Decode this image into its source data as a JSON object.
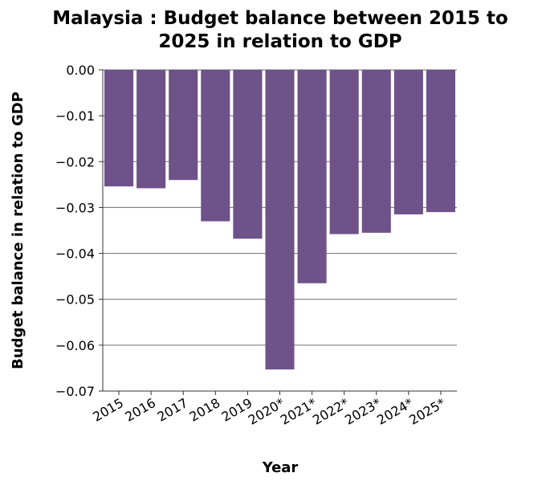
{
  "chart_data": {
    "type": "bar",
    "title_lines": [
      "Malaysia : Budget balance between 2015 to",
      "2025 in relation to GDP"
    ],
    "xlabel": "Year",
    "ylabel": "Budget balance in relation to GDP",
    "categories": [
      "2015",
      "2016",
      "2017",
      "2018",
      "2019",
      "2020*",
      "2021*",
      "2022*",
      "2023*",
      "2024*",
      "2025*"
    ],
    "values": [
      -0.0254,
      -0.0258,
      -0.024,
      -0.033,
      -0.0368,
      -0.0653,
      -0.0465,
      -0.0358,
      -0.0355,
      -0.0315,
      -0.031
    ],
    "ylim": [
      -0.07,
      0.0
    ],
    "yticks": [
      "0.00",
      "−0.01",
      "−0.02",
      "−0.03",
      "−0.04",
      "−0.05",
      "−0.06",
      "−0.07"
    ],
    "ytick_values": [
      0.0,
      -0.01,
      -0.02,
      -0.03,
      -0.04,
      -0.05,
      -0.06,
      -0.07
    ],
    "grid": true,
    "colors": {
      "bar": "#6f5289",
      "grid": "#6e6e6e",
      "axis": "#333333"
    }
  }
}
